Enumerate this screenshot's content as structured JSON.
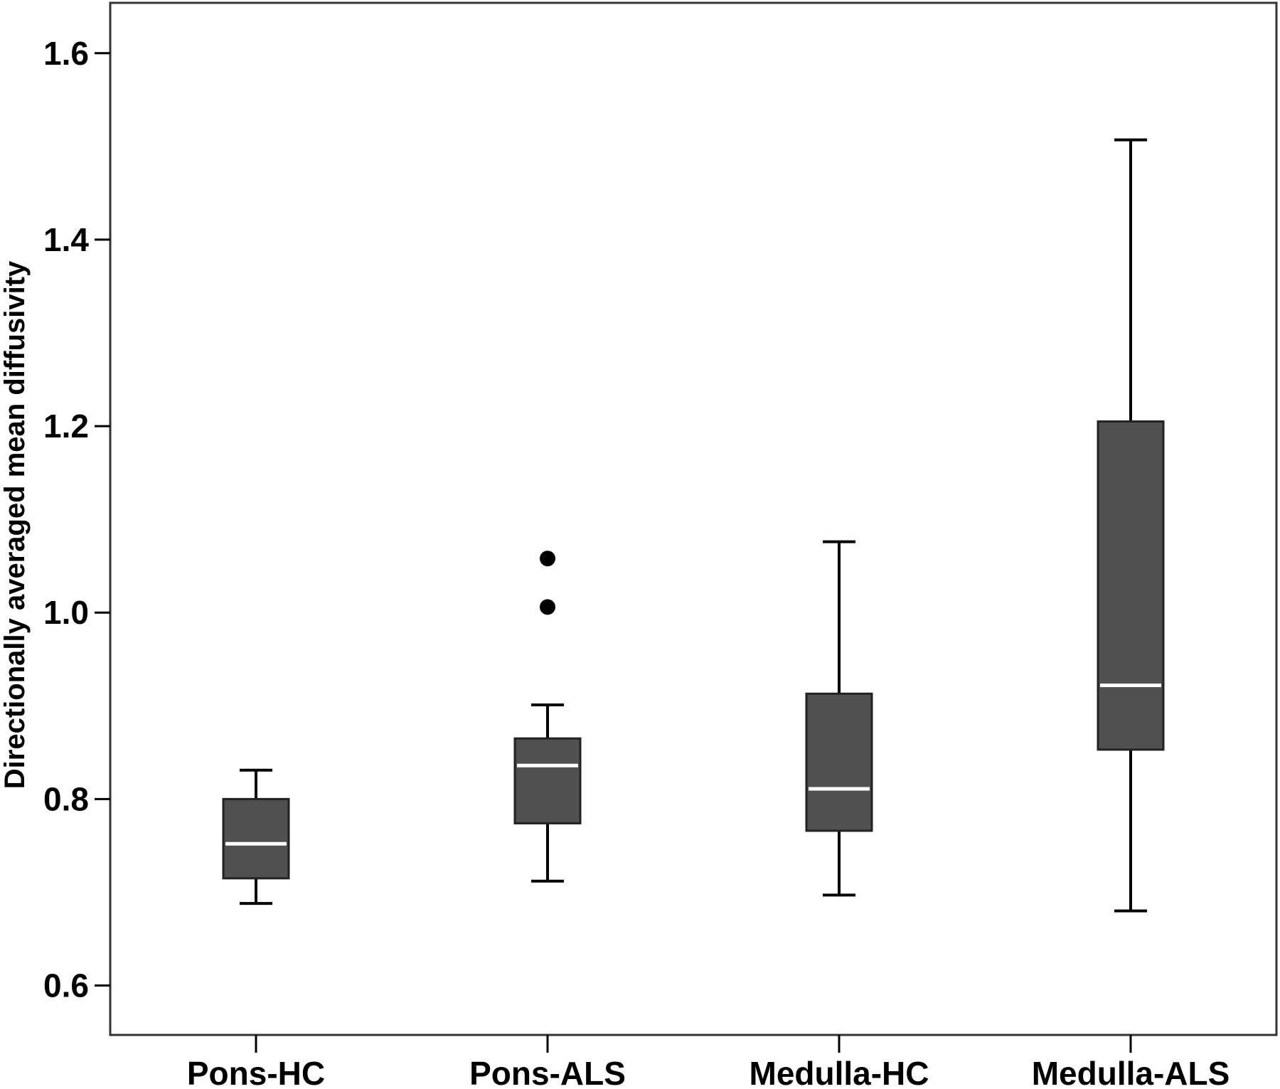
{
  "chart_data": {
    "type": "box",
    "title": "",
    "xlabel": "",
    "ylabel": "Directionally averaged mean diffusivity",
    "ylim": [
      0.547,
      1.654
    ],
    "yticks": [
      0.6,
      0.8,
      1.0,
      1.2,
      1.4,
      1.6
    ],
    "ytick_labels": [
      "0.6",
      "0.8",
      "1.0",
      "1.2",
      "1.4",
      "1.6"
    ],
    "grid": false,
    "categories": [
      "Pons-HC",
      "Pons-ALS",
      "Medulla-HC",
      "Medulla-ALS"
    ],
    "boxes": [
      {
        "whisker_low": 0.688,
        "q1": 0.715,
        "median": 0.752,
        "q3": 0.8,
        "whisker_high": 0.831,
        "outliers": []
      },
      {
        "whisker_low": 0.712,
        "q1": 0.774,
        "median": 0.836,
        "q3": 0.865,
        "whisker_high": 0.901,
        "outliers": [
          1.006,
          1.058
        ]
      },
      {
        "whisker_low": 0.697,
        "q1": 0.766,
        "median": 0.811,
        "q3": 0.913,
        "whisker_high": 1.076,
        "outliers": []
      },
      {
        "whisker_low": 0.68,
        "q1": 0.853,
        "median": 0.922,
        "q3": 1.205,
        "whisker_high": 1.507,
        "outliers": []
      }
    ],
    "colors": {
      "box_fill": "#505050",
      "median_line": "#ffffff",
      "whisker": "#000000",
      "outlier": "#000000",
      "frame": "#333333"
    }
  }
}
